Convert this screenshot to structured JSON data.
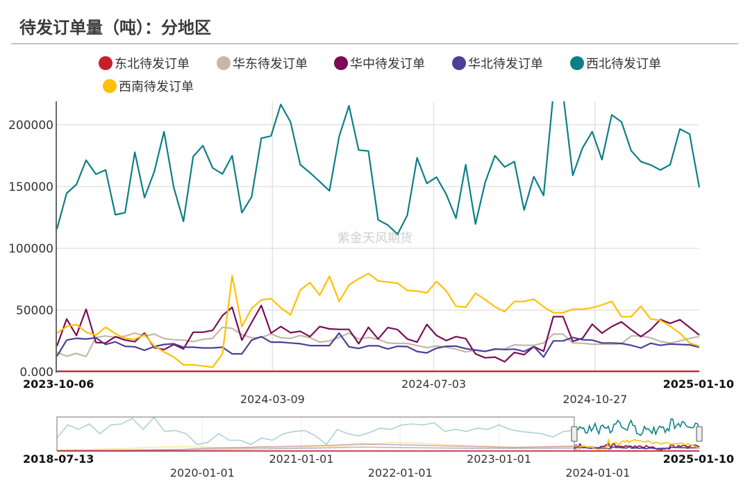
{
  "title": "待发订单量（吨）：分地区",
  "watermark": "紫金天风期货",
  "legend": [
    {
      "label": "东北待发订单",
      "color": "#c8202a"
    },
    {
      "label": "华东待发订单",
      "color": "#c4b8a6"
    },
    {
      "label": "华中待发订单",
      "color": "#7b0c55"
    },
    {
      "label": "华北待发订单",
      "color": "#4b3f98"
    },
    {
      "label": "西北待发订单",
      "color": "#0b7f86"
    },
    {
      "label": "西南待发订单",
      "color": "#ffc000"
    }
  ],
  "chart_data": {
    "type": "line",
    "title": "待发订单量（吨）：分地区",
    "x_range": [
      "2023-10-06",
      "2025-01-10"
    ],
    "x_ticks": [
      {
        "label": "2023-10-06",
        "bold": true
      },
      {
        "label": "2024-03-09",
        "bold": false
      },
      {
        "label": "2024-07-03",
        "bold": false
      },
      {
        "label": "2024-10-27",
        "bold": false
      },
      {
        "label": "2025-01-10",
        "bold": true
      }
    ],
    "y_ticks": [
      "0.000",
      "50000",
      "100000",
      "150000",
      "200000"
    ],
    "y_tick_values": [
      0,
      50000,
      100000,
      150000,
      200000
    ],
    "ylim": [
      0,
      219000
    ],
    "grid": true,
    "legend_position": "top",
    "series": [
      {
        "name": "东北待发订单",
        "color": "#c8202a",
        "values": [
          500,
          500,
          500,
          500,
          500,
          500,
          500,
          500,
          500,
          500,
          500,
          500,
          500,
          500,
          500,
          500,
          500,
          500,
          500,
          500,
          500,
          500,
          500,
          500,
          500,
          500,
          500,
          500,
          500,
          500,
          500,
          500,
          500,
          500,
          500,
          500,
          500,
          500,
          500,
          500,
          500,
          500,
          500,
          500,
          500,
          500,
          500,
          500,
          500,
          500,
          500,
          500,
          500,
          500,
          500,
          500,
          500,
          500,
          500,
          500,
          500,
          500,
          500,
          500,
          500,
          500,
          500
        ]
      },
      {
        "name": "华东待发订单",
        "color": "#c4b8a6",
        "values": [
          15800,
          12700,
          15000,
          12400,
          27900,
          29100,
          27900,
          28900,
          31400,
          29100,
          30600,
          27000,
          26000,
          25700,
          24500,
          26400,
          27200,
          36100,
          35200,
          30200,
          27600,
          27900,
          30800,
          27600,
          27200,
          29500,
          27600,
          24100,
          25100,
          27900,
          31400,
          26600,
          27900,
          26400,
          23400,
          23000,
          23000,
          21300,
          19600,
          21100,
          20000,
          18400,
          16200,
          17500,
          16500,
          18100,
          18600,
          21900,
          21500,
          21500,
          23400,
          30600,
          30600,
          23400,
          23200,
          22400,
          22400,
          22400,
          22800,
          29100,
          29100,
          27600,
          24700,
          23200,
          25100,
          27200,
          28500
        ]
      },
      {
        "name": "华中待发订单",
        "color": "#7b0c55",
        "values": [
          20900,
          42800,
          29500,
          50700,
          23800,
          23400,
          28500,
          25700,
          24500,
          31400,
          19600,
          18100,
          22200,
          18600,
          32100,
          32100,
          33600,
          45600,
          52300,
          25700,
          39900,
          53800,
          31400,
          36700,
          31700,
          32900,
          28500,
          36700,
          34800,
          34400,
          34400,
          22800,
          36100,
          26600,
          35900,
          34200,
          26600,
          24100,
          38400,
          29500,
          25300,
          28500,
          27000,
          14600,
          11400,
          12000,
          8200,
          15800,
          13900,
          20500,
          16700,
          44700,
          44700,
          24700,
          27200,
          38600,
          31400,
          36700,
          40500,
          34200,
          28500,
          34200,
          42400,
          39300,
          42200,
          36100,
          29800
        ]
      },
      {
        "name": "华北待发订单",
        "color": "#4b3f98",
        "values": [
          12700,
          25700,
          27200,
          26600,
          27600,
          22200,
          24300,
          20700,
          20300,
          17500,
          20500,
          22200,
          22800,
          20000,
          20000,
          19400,
          19400,
          20000,
          14600,
          14600,
          25700,
          28500,
          24100,
          24100,
          23400,
          22800,
          21300,
          21300,
          21300,
          31400,
          20300,
          19000,
          21100,
          21100,
          18600,
          20700,
          20500,
          16500,
          15400,
          19200,
          20700,
          20900,
          18800,
          17700,
          16700,
          18600,
          18100,
          18400,
          16500,
          20500,
          12000,
          25100,
          25100,
          27900,
          26000,
          25700,
          23400,
          23400,
          23000,
          21500,
          19400,
          23200,
          21500,
          22600,
          22200,
          21900,
          20000
        ]
      },
      {
        "name": "西北待发订单",
        "color": "#0b7f86",
        "values": [
          115600,
          144600,
          151600,
          171300,
          160000,
          163400,
          127200,
          128900,
          177800,
          141100,
          162100,
          194400,
          149300,
          121800,
          174300,
          183100,
          165100,
          160200,
          175000,
          128900,
          141600,
          189100,
          191000,
          216500,
          202200,
          167700,
          161200,
          154000,
          146500,
          190600,
          215400,
          179500,
          178800,
          123100,
          118800,
          111400,
          126800,
          173300,
          152500,
          157600,
          143700,
          124400,
          167700,
          119700,
          153500,
          175000,
          165800,
          170200,
          131000,
          158100,
          142800,
          225000,
          225000,
          159100,
          181200,
          194400,
          171800,
          208000,
          202400,
          179000,
          170200,
          167500,
          163400,
          167700,
          196600,
          192500,
          149300
        ]
      },
      {
        "name": "西南待发订单",
        "color": "#ffc000",
        "values": [
          31400,
          36700,
          38400,
          32100,
          29800,
          36100,
          31000,
          27000,
          26400,
          30200,
          20900,
          16200,
          12000,
          5700,
          5700,
          4750,
          3800,
          14600,
          77900,
          36700,
          51300,
          58300,
          59300,
          51900,
          46200,
          66300,
          72200,
          62100,
          77300,
          57000,
          70300,
          75400,
          79600,
          73700,
          72600,
          71800,
          65900,
          65400,
          64000,
          73200,
          65600,
          53200,
          52300,
          63700,
          58500,
          52600,
          48800,
          57000,
          57000,
          58900,
          52600,
          47900,
          47900,
          50700,
          50700,
          51900,
          54200,
          57000,
          44700,
          44700,
          53200,
          42800,
          41800,
          37000,
          31400,
          23400,
          20900
        ]
      }
    ],
    "navigator": {
      "x_range": [
        "2018-07-13",
        "2025-01-10"
      ],
      "selected_range": [
        "2023-10-06",
        "2025-01-10"
      ],
      "x_ticks": [
        {
          "label": "2018-07-13",
          "date": "2018-07-13",
          "bold": true
        },
        {
          "label": "2020-01-01",
          "date": "2020-01-01",
          "bold": false
        },
        {
          "label": "2021-01-01",
          "date": "2021-01-01",
          "bold": false
        },
        {
          "label": "2022-01-01",
          "date": "2022-01-01",
          "bold": false
        },
        {
          "label": "2023-01-01",
          "date": "2023-01-01",
          "bold": false
        },
        {
          "label": "2024-01-01",
          "date": "2024-01-01",
          "bold": false
        },
        {
          "label": "2025-01-10",
          "date": "2025-01-10",
          "bold": true
        }
      ],
      "history_range": [
        "2018-07-13",
        "2023-10-06"
      ],
      "history_series": [
        {
          "color": "#0b7f86",
          "values": [
            92000,
            184000,
            153000,
            191000,
            122000,
            184000,
            191000,
            230000,
            153000,
            237000,
            138000,
            145000,
            122000,
            46000,
            61000,
            122000,
            76000,
            76000,
            46000,
            92000,
            76000,
            122000,
            138000,
            145000,
            107000,
            46000,
            153000,
            122000,
            107000,
            130000,
            161000,
            153000,
            184000,
            191000,
            184000,
            199000,
            138000,
            153000,
            138000,
            161000,
            153000,
            184000,
            153000,
            138000,
            130000,
            122000,
            99000,
            138000,
            145000
          ]
        },
        {
          "color": "#ffc000",
          "values": [
            8000,
            10000,
            15000,
            20000,
            28000,
            30000,
            25000,
            20000,
            28000,
            22000,
            30000,
            35000,
            45000,
            60000,
            55000,
            45000,
            40000,
            30000,
            25000,
            28000,
            30000
          ]
        },
        {
          "color": "#7b0c55",
          "values": [
            2000,
            3000,
            5000,
            8000,
            10000,
            20000,
            25000,
            30000,
            35000,
            40000,
            50000,
            45000,
            40000,
            35000,
            30000,
            25000,
            30000,
            35000
          ]
        },
        {
          "color": "#4b3f98",
          "values": [
            3000,
            4000,
            5000,
            6000,
            8000,
            10000,
            12000,
            15000,
            18000,
            22000,
            28000,
            25000,
            22000,
            20000,
            18000,
            17000,
            18000,
            20000
          ]
        },
        {
          "color": "#c4b8a6",
          "values": [
            5000,
            6000,
            8000,
            10000,
            12000,
            15000,
            18000,
            20000,
            22000,
            25000,
            28000,
            26000,
            24000,
            22000,
            20000,
            21000,
            22000,
            24000
          ]
        },
        {
          "color": "#c8202a",
          "values": [
            500,
            500,
            500,
            500,
            500,
            500,
            500,
            500
          ]
        }
      ]
    }
  }
}
